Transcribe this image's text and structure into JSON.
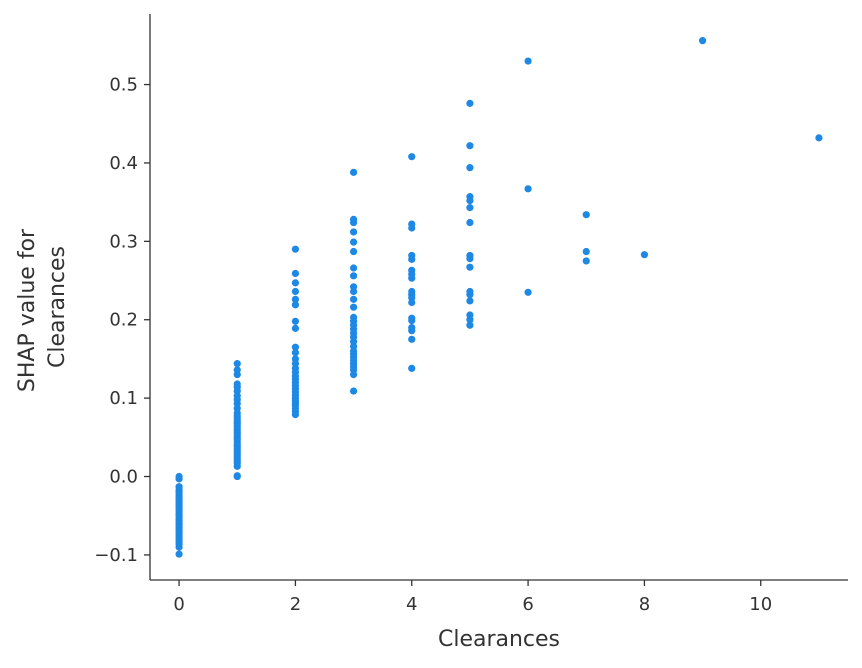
{
  "chart_data": {
    "type": "scatter",
    "xlabel": "Clearances",
    "ylabel": [
      "SHAP value for",
      "Clearances"
    ],
    "xlim": [
      -0.5,
      11.5
    ],
    "ylim": [
      -0.132,
      0.59
    ],
    "xticks": [
      0,
      2,
      4,
      6,
      8,
      10
    ],
    "yticks": [
      -0.1,
      0.0,
      0.1,
      0.2,
      0.3,
      0.4,
      0.5
    ],
    "ytick_labels": [
      "−0.1",
      "0.0",
      "0.1",
      "0.2",
      "0.3",
      "0.4",
      "0.5"
    ],
    "grid": false,
    "legend": "none",
    "point_color": "#1e88e5",
    "series": [
      {
        "points": [
          [
            0,
            0.0
          ],
          [
            0,
            -0.003
          ],
          [
            0,
            -0.013
          ],
          [
            0,
            -0.017
          ],
          [
            0,
            -0.02
          ],
          [
            0,
            -0.023
          ],
          [
            0,
            -0.026
          ],
          [
            0,
            -0.029
          ],
          [
            0,
            -0.032
          ],
          [
            0,
            -0.035
          ],
          [
            0,
            -0.038
          ],
          [
            0,
            -0.041
          ],
          [
            0,
            -0.044
          ],
          [
            0,
            -0.047
          ],
          [
            0,
            -0.05
          ],
          [
            0,
            -0.053
          ],
          [
            0,
            -0.056
          ],
          [
            0,
            -0.059
          ],
          [
            0,
            -0.062
          ],
          [
            0,
            -0.065
          ],
          [
            0,
            -0.068
          ],
          [
            0,
            -0.071
          ],
          [
            0,
            -0.074
          ],
          [
            0,
            -0.077
          ],
          [
            0,
            -0.08
          ],
          [
            0,
            -0.083
          ],
          [
            0,
            -0.086
          ],
          [
            0,
            -0.09
          ],
          [
            0,
            -0.099
          ],
          [
            1,
            0.0
          ],
          [
            1,
            0.001
          ],
          [
            1,
            0.013
          ],
          [
            1,
            0.017
          ],
          [
            1,
            0.02
          ],
          [
            1,
            0.023
          ],
          [
            1,
            0.026
          ],
          [
            1,
            0.029
          ],
          [
            1,
            0.032
          ],
          [
            1,
            0.035
          ],
          [
            1,
            0.038
          ],
          [
            1,
            0.041
          ],
          [
            1,
            0.044
          ],
          [
            1,
            0.047
          ],
          [
            1,
            0.05
          ],
          [
            1,
            0.053
          ],
          [
            1,
            0.056
          ],
          [
            1,
            0.059
          ],
          [
            1,
            0.062
          ],
          [
            1,
            0.065
          ],
          [
            1,
            0.068
          ],
          [
            1,
            0.071
          ],
          [
            1,
            0.074
          ],
          [
            1,
            0.077
          ],
          [
            1,
            0.081
          ],
          [
            1,
            0.087
          ],
          [
            1,
            0.093
          ],
          [
            1,
            0.098
          ],
          [
            1,
            0.103
          ],
          [
            1,
            0.109
          ],
          [
            1,
            0.114
          ],
          [
            1,
            0.118
          ],
          [
            1,
            0.13
          ],
          [
            1,
            0.136
          ],
          [
            1,
            0.144
          ],
          [
            2,
            0.079
          ],
          [
            2,
            0.083
          ],
          [
            2,
            0.087
          ],
          [
            2,
            0.091
          ],
          [
            2,
            0.094
          ],
          [
            2,
            0.097
          ],
          [
            2,
            0.1
          ],
          [
            2,
            0.104
          ],
          [
            2,
            0.108
          ],
          [
            2,
            0.112
          ],
          [
            2,
            0.116
          ],
          [
            2,
            0.12
          ],
          [
            2,
            0.124
          ],
          [
            2,
            0.128
          ],
          [
            2,
            0.133
          ],
          [
            2,
            0.138
          ],
          [
            2,
            0.144
          ],
          [
            2,
            0.15
          ],
          [
            2,
            0.158
          ],
          [
            2,
            0.165
          ],
          [
            2,
            0.189
          ],
          [
            2,
            0.198
          ],
          [
            2,
            0.219
          ],
          [
            2,
            0.226
          ],
          [
            2,
            0.236
          ],
          [
            2,
            0.247
          ],
          [
            2,
            0.259
          ],
          [
            2,
            0.29
          ],
          [
            3,
            0.109
          ],
          [
            3,
            0.13
          ],
          [
            3,
            0.136
          ],
          [
            3,
            0.14
          ],
          [
            3,
            0.144
          ],
          [
            3,
            0.148
          ],
          [
            3,
            0.152
          ],
          [
            3,
            0.156
          ],
          [
            3,
            0.16
          ],
          [
            3,
            0.166
          ],
          [
            3,
            0.172
          ],
          [
            3,
            0.178
          ],
          [
            3,
            0.183
          ],
          [
            3,
            0.188
          ],
          [
            3,
            0.193
          ],
          [
            3,
            0.198
          ],
          [
            3,
            0.203
          ],
          [
            3,
            0.216
          ],
          [
            3,
            0.226
          ],
          [
            3,
            0.236
          ],
          [
            3,
            0.242
          ],
          [
            3,
            0.256
          ],
          [
            3,
            0.266
          ],
          [
            3,
            0.287
          ],
          [
            3,
            0.299
          ],
          [
            3,
            0.312
          ],
          [
            3,
            0.324
          ],
          [
            3,
            0.328
          ],
          [
            3,
            0.388
          ],
          [
            4,
            0.138
          ],
          [
            4,
            0.175
          ],
          [
            4,
            0.186
          ],
          [
            4,
            0.19
          ],
          [
            4,
            0.199
          ],
          [
            4,
            0.202
          ],
          [
            4,
            0.222
          ],
          [
            4,
            0.228
          ],
          [
            4,
            0.232
          ],
          [
            4,
            0.236
          ],
          [
            4,
            0.253
          ],
          [
            4,
            0.258
          ],
          [
            4,
            0.263
          ],
          [
            4,
            0.277
          ],
          [
            4,
            0.282
          ],
          [
            4,
            0.317
          ],
          [
            4,
            0.322
          ],
          [
            4,
            0.408
          ],
          [
            5,
            0.193
          ],
          [
            5,
            0.2
          ],
          [
            5,
            0.206
          ],
          [
            5,
            0.224
          ],
          [
            5,
            0.232
          ],
          [
            5,
            0.236
          ],
          [
            5,
            0.267
          ],
          [
            5,
            0.278
          ],
          [
            5,
            0.282
          ],
          [
            5,
            0.324
          ],
          [
            5,
            0.343
          ],
          [
            5,
            0.352
          ],
          [
            5,
            0.357
          ],
          [
            5,
            0.394
          ],
          [
            5,
            0.422
          ],
          [
            5,
            0.476
          ],
          [
            6,
            0.235
          ],
          [
            6,
            0.367
          ],
          [
            6,
            0.53
          ],
          [
            7,
            0.275
          ],
          [
            7,
            0.287
          ],
          [
            7,
            0.334
          ],
          [
            8,
            0.283
          ],
          [
            9,
            0.556
          ],
          [
            11,
            0.432
          ]
        ]
      }
    ]
  }
}
